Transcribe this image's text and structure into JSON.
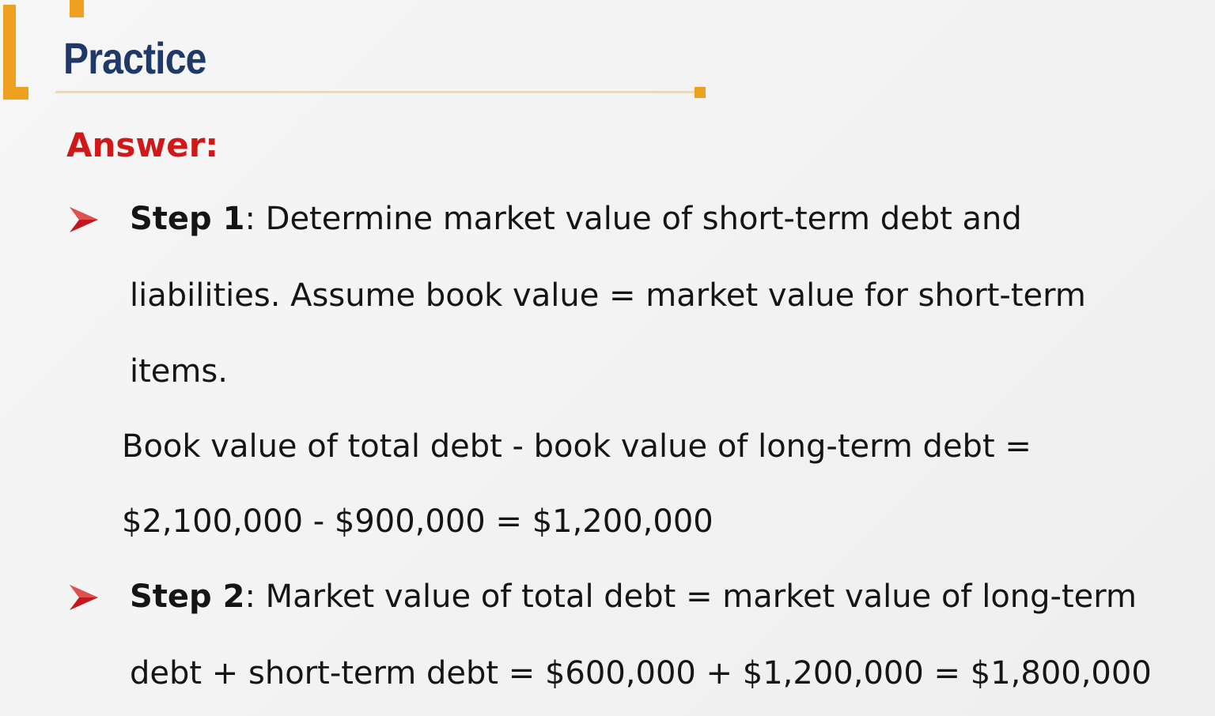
{
  "slide": {
    "title": "Practice",
    "answer_label": "Answer:",
    "step1": {
      "label": "Step 1",
      "line1": ": Determine market value of short-term debt and",
      "line2": "liabilities. Assume book value = market value for short-term",
      "line3": "items."
    },
    "calc1": {
      "line1": "Book value of total debt - book value of long-term debt =",
      "line2": "$2,100,000 - $900,000 = $1,200,000"
    },
    "step2": {
      "label": "Step 2",
      "line1": ": Market value of total debt = market value of long-term",
      "line2": "debt + short-term debt = $600,000 + $1,200,000 = $1,800,000"
    }
  },
  "colors": {
    "title": "#1f3a68",
    "answer": "#d11818",
    "accent": "#f0a020",
    "bullet": "#c0181e"
  },
  "icons": {
    "bullet": "arrowhead-bullet-icon"
  }
}
